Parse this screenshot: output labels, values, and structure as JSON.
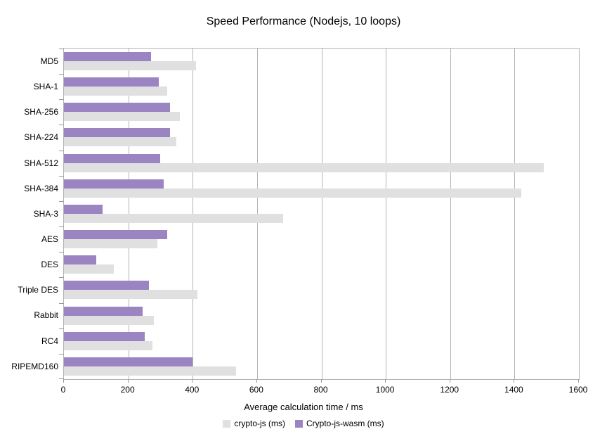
{
  "chart_data": {
    "type": "bar",
    "orientation": "horizontal",
    "title": "Speed Performance (Nodejs, 10 loops)",
    "xlabel": "Average calculation time / ms",
    "ylabel": "",
    "xlim": [
      0,
      1600
    ],
    "xticks": [
      0,
      200,
      400,
      600,
      800,
      1000,
      1200,
      1400,
      1600
    ],
    "grid": "vertical-only",
    "legend_position": "bottom",
    "categories": [
      "MD5",
      "SHA-1",
      "SHA-256",
      "SHA-224",
      "SHA-512",
      "SHA-384",
      "SHA-3",
      "AES",
      "DES",
      "Triple DES",
      "Rabbit",
      "RC4",
      "RIPEMD160"
    ],
    "series": [
      {
        "name": "crypto-js (ms)",
        "color": "#e0e0e0",
        "values": [
          410,
          320,
          360,
          350,
          1490,
          1420,
          680,
          290,
          155,
          415,
          280,
          275,
          535
        ]
      },
      {
        "name": "Crypto-js-wasm (ms)",
        "color": "#9a84c2",
        "values": [
          270,
          295,
          330,
          330,
          300,
          310,
          120,
          320,
          100,
          265,
          245,
          250,
          400
        ]
      }
    ],
    "bar_display_note": "within each category the second series (wasm, purple) is drawn above the first (crypto-js, gray)",
    "colors": {
      "background": "#ffffff",
      "gridline": "#b3b3b3",
      "axis_frame": "#b3b3b3",
      "tick_mark": "#999999",
      "text": "#000000"
    }
  }
}
